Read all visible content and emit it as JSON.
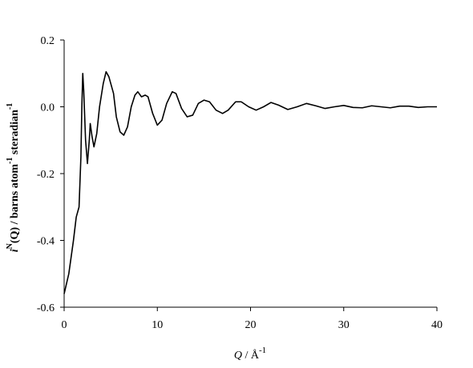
{
  "chart_data": {
    "type": "line",
    "xlabel_parts": [
      "Q",
      " / Å",
      "-1"
    ],
    "ylabel_parts": [
      "i",
      "N",
      "(Q) / barns atom",
      "-1",
      " steradian",
      "-1"
    ],
    "x": [
      0,
      0.5,
      1.0,
      1.3,
      1.6,
      1.8,
      1.9,
      2.0,
      2.1,
      2.3,
      2.5,
      2.7,
      2.8,
      3.0,
      3.2,
      3.5,
      3.8,
      4.2,
      4.5,
      4.8,
      5.0,
      5.3,
      5.6,
      6.0,
      6.4,
      6.8,
      7.2,
      7.6,
      7.9,
      8.3,
      8.7,
      9.0,
      9.5,
      10.0,
      10.5,
      11.0,
      11.6,
      12.0,
      12.6,
      13.2,
      13.8,
      14.4,
      15.0,
      15.6,
      16.3,
      17.0,
      17.6,
      18.4,
      19.0,
      19.8,
      20.6,
      21.4,
      22.2,
      23.0,
      24.0,
      25.0,
      26.0,
      27.0,
      28.0,
      29.0,
      30.0,
      31.0,
      32.0,
      33.0,
      34.0,
      35.0,
      36.0,
      37.0,
      38.0,
      39.0,
      40.0
    ],
    "series": [
      {
        "color": "#000000",
        "values": [
          -0.56,
          -0.5,
          -0.4,
          -0.33,
          -0.3,
          -0.15,
          0.0,
          0.1,
          0.05,
          -0.1,
          -0.17,
          -0.1,
          -0.05,
          -0.09,
          -0.12,
          -0.08,
          0.0,
          0.07,
          0.105,
          0.09,
          0.07,
          0.04,
          -0.03,
          -0.075,
          -0.085,
          -0.06,
          0.0,
          0.035,
          0.045,
          0.03,
          0.035,
          0.03,
          -0.02,
          -0.055,
          -0.04,
          0.01,
          0.045,
          0.04,
          -0.005,
          -0.03,
          -0.025,
          0.01,
          0.02,
          0.015,
          -0.01,
          -0.02,
          -0.01,
          0.015,
          0.015,
          0.0,
          -0.01,
          0.0,
          0.013,
          0.005,
          -0.008,
          0.0,
          0.01,
          0.003,
          -0.005,
          0.0,
          0.004,
          -0.002,
          -0.003,
          0.003,
          0.0,
          -0.003,
          0.002,
          0.002,
          -0.002,
          0.0,
          0.0
        ]
      }
    ],
    "xlim": [
      0,
      40
    ],
    "xticks": [
      0,
      10,
      20,
      30,
      40
    ],
    "ylim": [
      -0.6,
      0.2
    ],
    "yticks": [
      -0.6,
      -0.4,
      -0.2,
      {
        "value": 0,
        "label": "0.0"
      },
      0.2
    ]
  }
}
